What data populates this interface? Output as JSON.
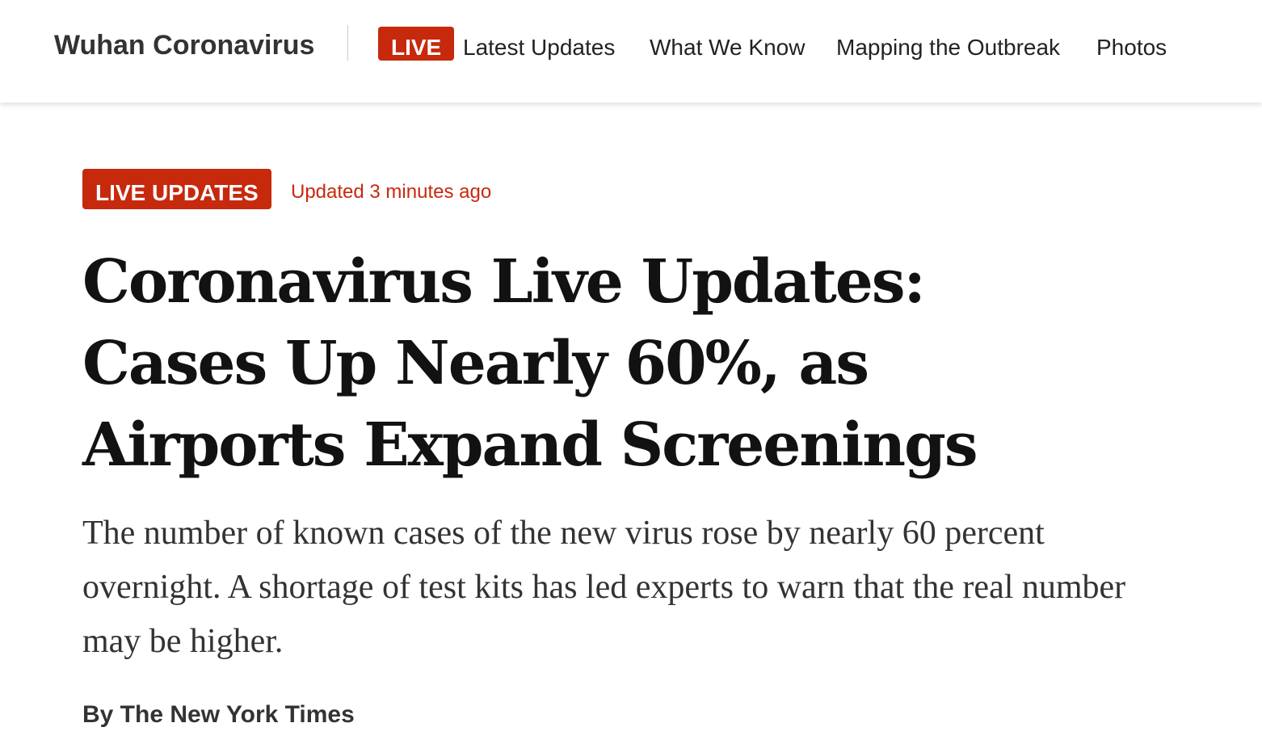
{
  "nav": {
    "section_title": "Wuhan Coronavirus",
    "live_label": "LIVE",
    "links": [
      "Latest Updates",
      "What We Know",
      "Mapping the Outbreak",
      "Photos"
    ]
  },
  "article": {
    "badge": "LIVE UPDATES",
    "updated": "Updated 3 minutes ago",
    "headline": "Coronavirus Live Updates: Cases Up Nearly 60%, as Airports Expand Screenings",
    "summary": "The number of known cases of the new virus rose by nearly 60 percent overnight. A shortage of test kits has led experts to warn that the real number may be higher.",
    "byline": "By The New York Times"
  },
  "colors": {
    "accent": "#c7290d",
    "text": "#121212",
    "muted_text": "#333333"
  }
}
